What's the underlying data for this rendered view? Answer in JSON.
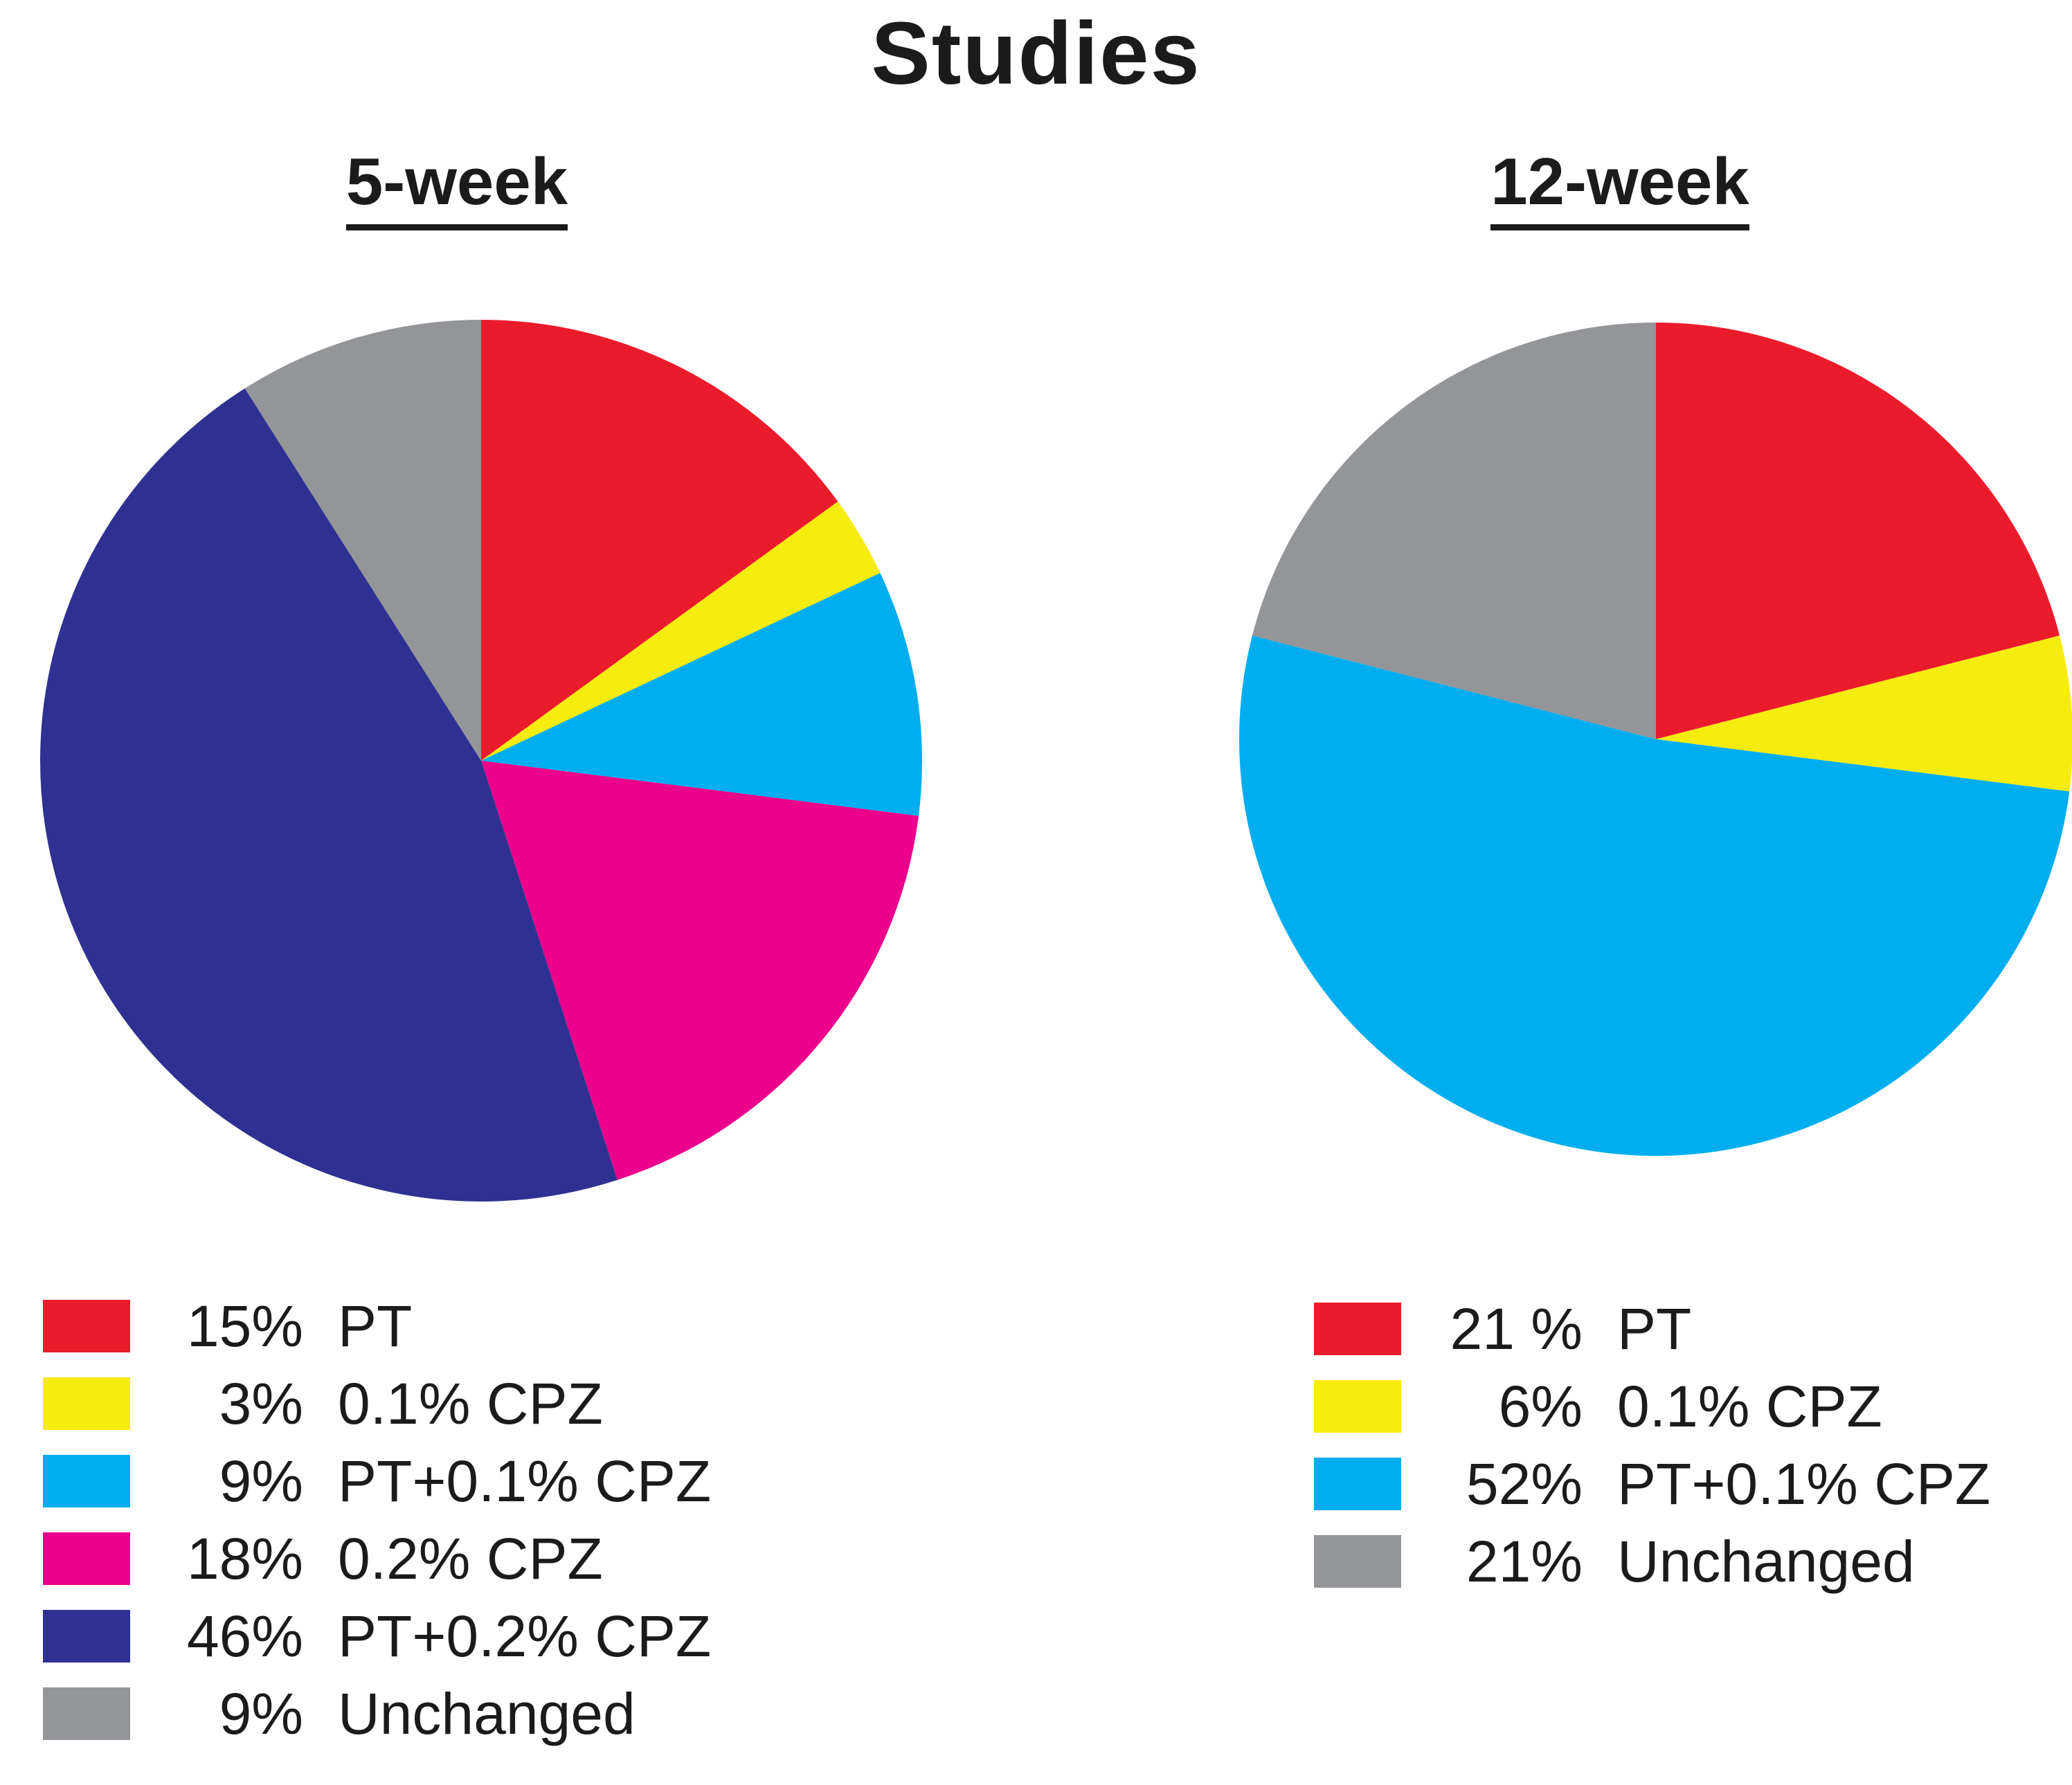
{
  "title": "Studies",
  "text_color": "#1b1b1b",
  "background_color": "#ffffff",
  "chart_data": [
    {
      "type": "pie",
      "title": "5-week",
      "start_angle_deg": 0,
      "direction": "clockwise",
      "legend_position": "below",
      "slices": [
        {
          "label": "PT",
          "pct_text": "15%",
          "value": 15,
          "color": "#EA1C2C"
        },
        {
          "label": "0.1% CPZ",
          "pct_text": "3%",
          "value": 3,
          "color": "#F7EC0F"
        },
        {
          "label": "PT+0.1% CPZ",
          "pct_text": "9%",
          "value": 9,
          "color": "#00AEEF"
        },
        {
          "label": "0.2% CPZ",
          "pct_text": "18%",
          "value": 18,
          "color": "#EC008C"
        },
        {
          "label": "PT+0.2% CPZ",
          "pct_text": "46%",
          "value": 46,
          "color": "#2E3192"
        },
        {
          "label": "Unchanged",
          "pct_text": "9%",
          "value": 9,
          "color": "#939598"
        }
      ]
    },
    {
      "type": "pie",
      "title": "12-week",
      "start_angle_deg": 0,
      "direction": "clockwise",
      "legend_position": "below",
      "slices": [
        {
          "label": "PT",
          "pct_text": "21 %",
          "value": 21,
          "color": "#EA1C2C"
        },
        {
          "label": "0.1% CPZ",
          "pct_text": "6%",
          "value": 6,
          "color": "#F7EC0F"
        },
        {
          "label": "PT+0.1% CPZ",
          "pct_text": "52%",
          "value": 52,
          "color": "#00AEEF"
        },
        {
          "label": "Unchanged",
          "pct_text": "21%",
          "value": 21,
          "color": "#939598"
        }
      ]
    }
  ]
}
